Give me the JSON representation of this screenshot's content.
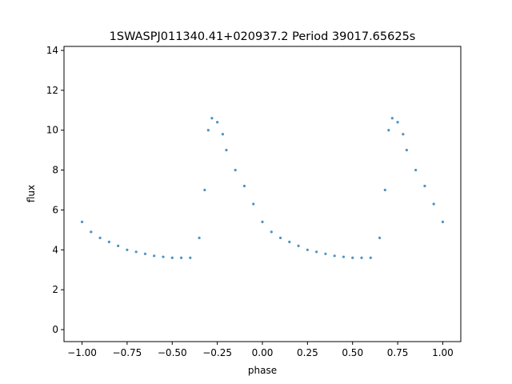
{
  "chart_data": {
    "type": "scatter",
    "title": "1SWASPJ011340.41+020937.2 Period 39017.65625s",
    "xlabel": "phase",
    "ylabel": "flux",
    "xlim": [
      -1.1,
      1.1
    ],
    "ylim": [
      -0.6,
      14.2
    ],
    "x_ticks": [
      -1.0,
      -0.75,
      -0.5,
      -0.25,
      0.0,
      0.25,
      0.5,
      0.75,
      1.0
    ],
    "x_tick_labels": [
      "−1.00",
      "−0.75",
      "−0.50",
      "−0.25",
      "0.00",
      "0.25",
      "0.50",
      "0.75",
      "1.00"
    ],
    "y_ticks": [
      0,
      2,
      4,
      6,
      8,
      10,
      12,
      14
    ],
    "y_tick_labels": [
      "0",
      "2",
      "4",
      "6",
      "8",
      "10",
      "12",
      "14"
    ],
    "grid": false,
    "point_color": "#1f77b4",
    "series": [
      {
        "phase": [
          -1.0,
          -0.95,
          -0.9,
          -0.85,
          -0.8,
          -0.75,
          -0.7,
          -0.65,
          -0.6,
          -0.55,
          -0.5,
          -0.45,
          -0.4,
          -0.35,
          -0.32,
          -0.3,
          -0.28,
          -0.25,
          -0.22,
          -0.2,
          -0.15,
          -0.1,
          -0.05,
          0.0,
          0.05,
          0.1,
          0.15,
          0.2,
          0.25,
          0.3,
          0.35,
          0.4,
          0.45,
          0.5,
          0.55,
          0.6,
          0.65,
          0.68,
          0.7,
          0.72,
          0.75,
          0.78,
          0.8,
          0.85,
          0.9,
          0.95,
          1.0
        ],
        "flux": [
          5.4,
          4.9,
          4.6,
          4.4,
          4.2,
          4.0,
          3.9,
          3.8,
          3.7,
          3.65,
          3.6,
          3.6,
          3.6,
          4.6,
          7.0,
          10.0,
          10.6,
          10.4,
          9.8,
          9.0,
          8.0,
          7.2,
          6.3,
          5.4,
          4.9,
          4.6,
          4.4,
          4.2,
          4.0,
          3.9,
          3.8,
          3.7,
          3.65,
          3.6,
          3.6,
          3.6,
          4.6,
          7.0,
          10.0,
          10.6,
          10.4,
          9.8,
          9.0,
          8.0,
          7.2,
          6.3,
          5.4
        ]
      }
    ]
  }
}
